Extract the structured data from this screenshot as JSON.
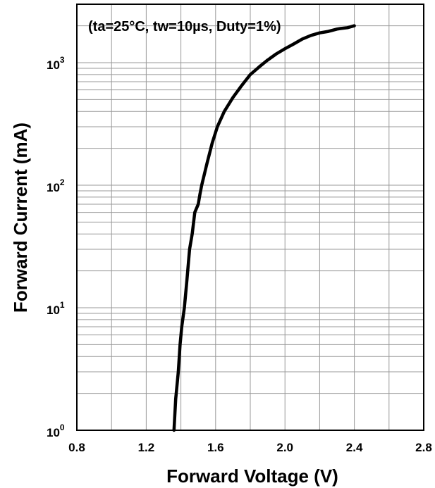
{
  "chart_data": {
    "type": "line",
    "annotation": "(ta=25°C, tw=10µs, Duty=1%)",
    "xlabel": "Forward Voltage (V)",
    "ylabel": "Forward Current (mA)",
    "xlim": [
      0.8,
      2.8
    ],
    "ylim": [
      1,
      3000
    ],
    "yscale": "log",
    "grid": true,
    "x_ticks": [
      "0.8",
      "1.2",
      "1.6",
      "2.0",
      "2.4",
      "2.8"
    ],
    "y_ticks": [
      {
        "base": "10",
        "exp": "0"
      },
      {
        "base": "10",
        "exp": "1"
      },
      {
        "base": "10",
        "exp": "2"
      },
      {
        "base": "10",
        "exp": "3"
      }
    ],
    "series": [
      {
        "color": "#000000",
        "x": [
          1.36,
          1.37,
          1.385,
          1.395,
          1.405,
          1.42,
          1.435,
          1.45,
          1.465,
          1.48,
          1.5,
          1.51,
          1.52,
          1.55,
          1.58,
          1.61,
          1.65,
          1.7,
          1.75,
          1.8,
          1.85,
          1.9,
          1.95,
          2.0,
          2.05,
          2.1,
          2.15,
          2.2,
          2.25,
          2.3,
          2.32,
          2.36,
          2.4
        ],
        "y": [
          1,
          1.8,
          3,
          5,
          7,
          10,
          17,
          30,
          40,
          60,
          70,
          85,
          100,
          150,
          220,
          300,
          400,
          520,
          650,
          800,
          920,
          1050,
          1180,
          1300,
          1420,
          1560,
          1670,
          1750,
          1800,
          1880,
          1900,
          1930,
          2000
        ]
      }
    ]
  }
}
